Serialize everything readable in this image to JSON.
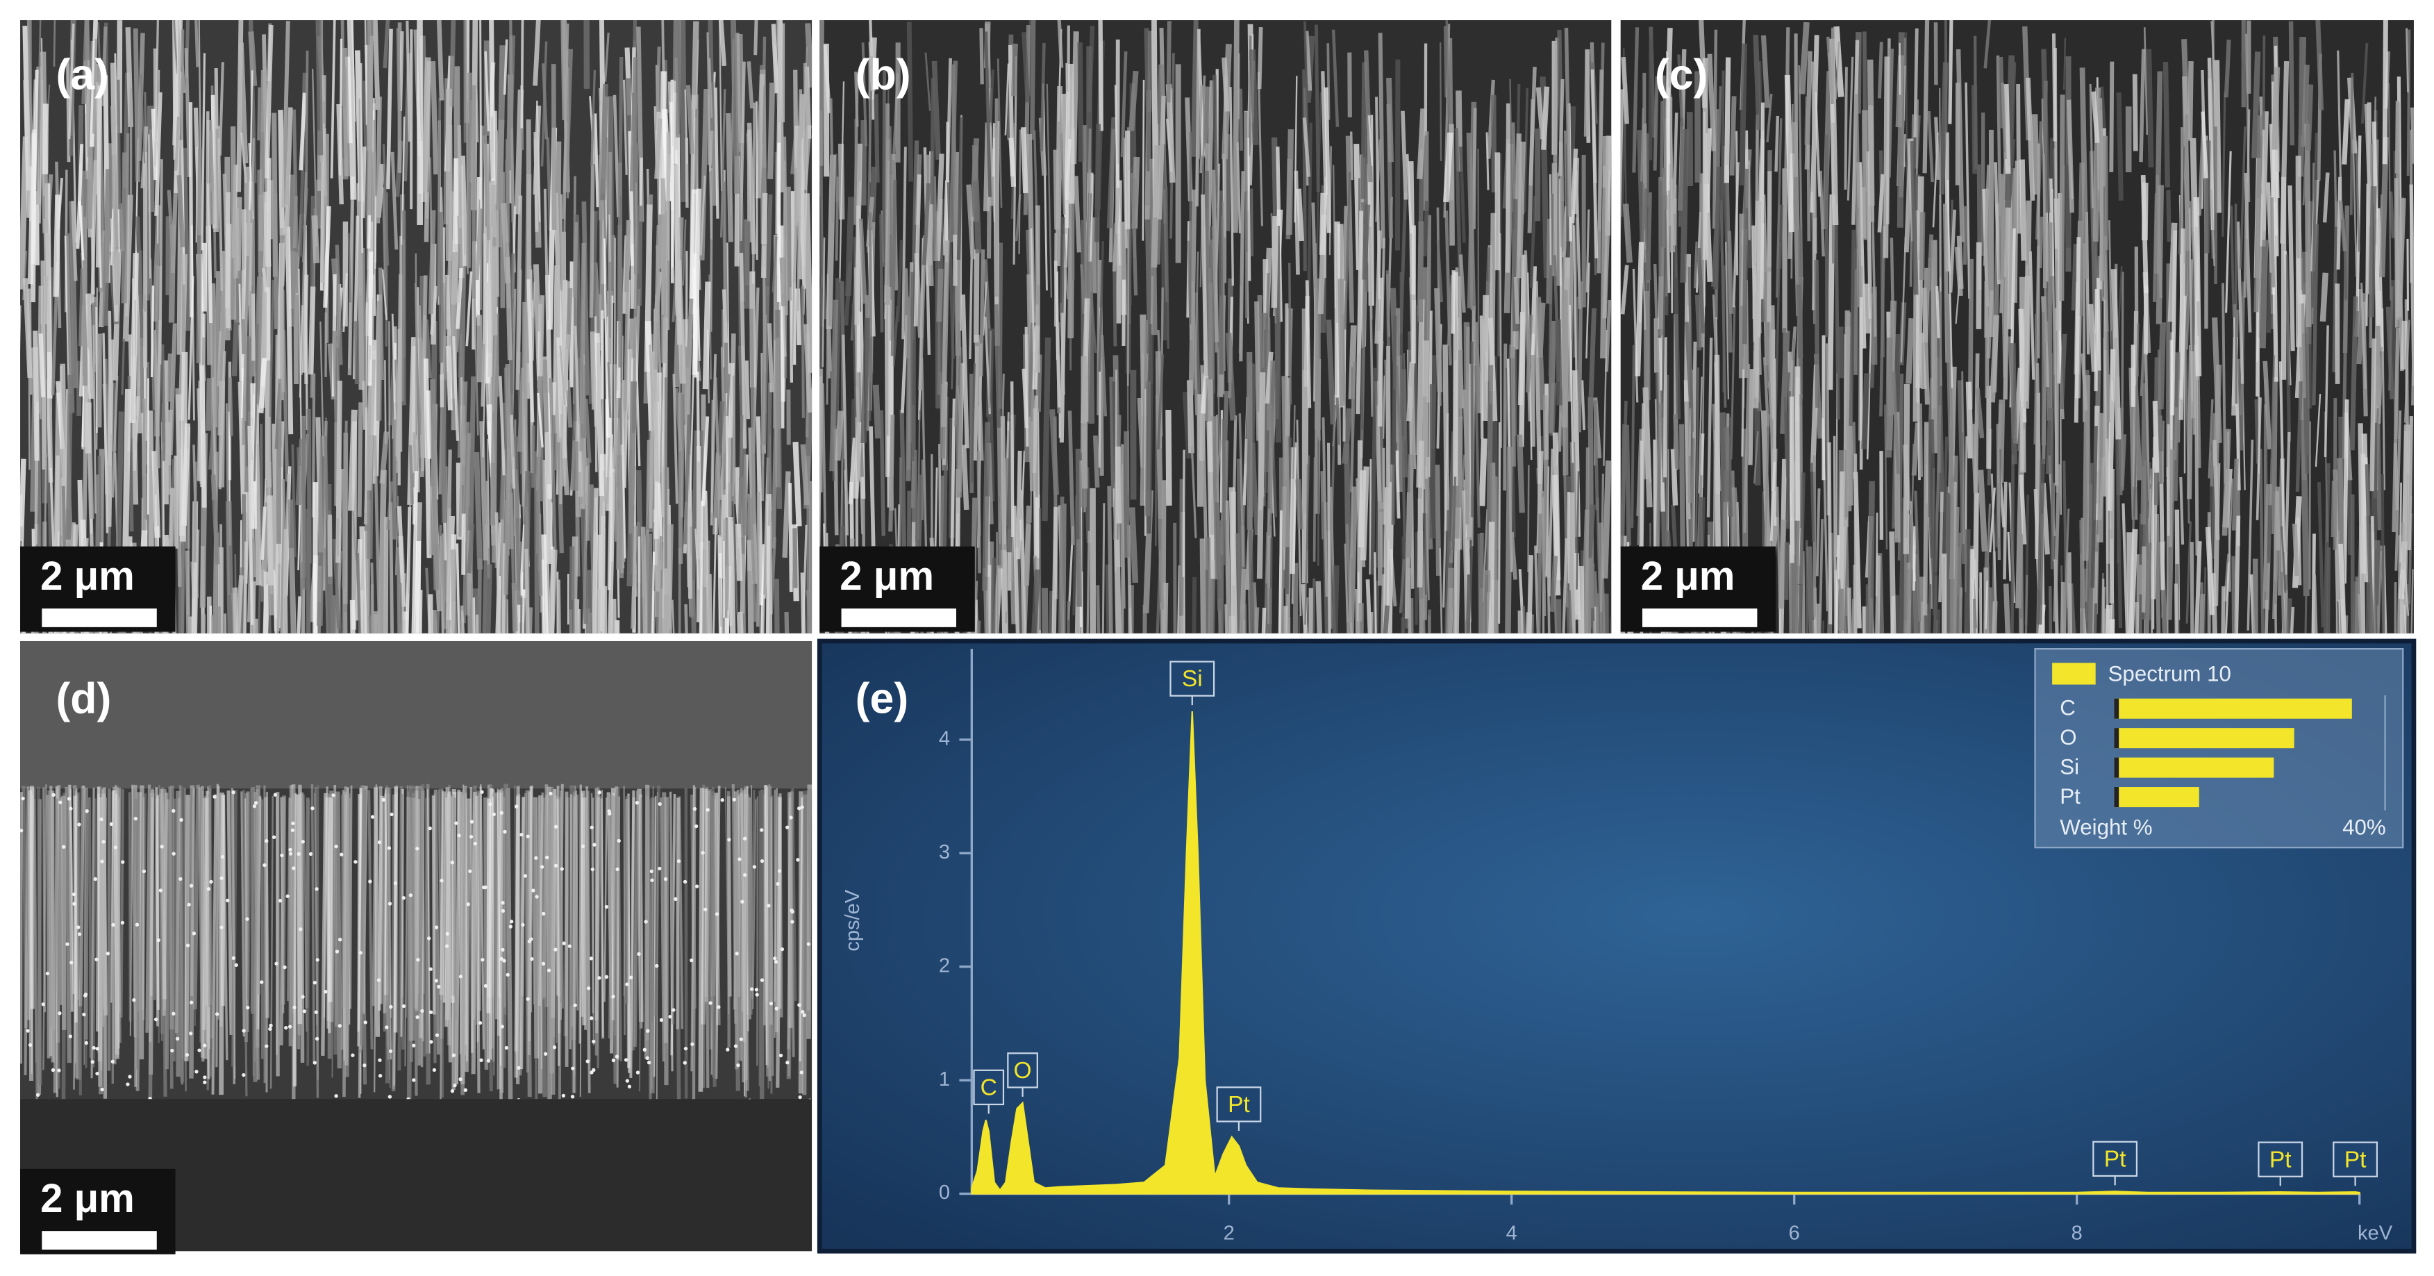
{
  "panels": [
    {
      "label": "(a)",
      "scale_bar": "2 μm"
    },
    {
      "label": "(b)",
      "scale_bar": "2 μm"
    },
    {
      "label": "(c)",
      "scale_bar": "2 μm"
    },
    {
      "label": "(d)",
      "scale_bar": "2 μm"
    },
    {
      "label": "(e)"
    }
  ],
  "chart_data": {
    "type": "area",
    "ylabel": "cps/eV",
    "xlim": [
      0.18,
      10
    ],
    "xticks": [
      2,
      4,
      6,
      8,
      {
        "value": 10,
        "label": "keV"
      }
    ],
    "ylim": [
      0,
      4.8
    ],
    "yticks": [
      0,
      1,
      2,
      3,
      4
    ],
    "series": [
      {
        "name": "Spectrum 10",
        "color": "#f2e52a",
        "x": [
          0.18,
          0.22,
          0.26,
          0.28,
          0.3,
          0.34,
          0.38,
          0.42,
          0.46,
          0.5,
          0.54,
          0.58,
          0.62,
          0.7,
          0.8,
          1.0,
          1.2,
          1.4,
          1.55,
          1.65,
          1.7,
          1.74,
          1.78,
          1.83,
          1.9,
          1.96,
          2.02,
          2.07,
          2.12,
          2.2,
          2.35,
          2.6,
          3,
          4,
          5,
          6,
          7,
          8,
          8.27,
          8.5,
          9,
          9.44,
          9.7,
          9.97,
          10
        ],
        "values": [
          0.05,
          0.2,
          0.55,
          0.65,
          0.55,
          0.1,
          0.03,
          0.1,
          0.45,
          0.75,
          0.8,
          0.45,
          0.1,
          0.05,
          0.06,
          0.07,
          0.08,
          0.1,
          0.25,
          1.2,
          3.0,
          4.25,
          3.0,
          1.0,
          0.15,
          0.35,
          0.5,
          0.42,
          0.25,
          0.1,
          0.05,
          0.04,
          0.03,
          0.02,
          0.015,
          0.01,
          0.01,
          0.01,
          0.02,
          0.01,
          0.01,
          0.015,
          0.01,
          0.015,
          0.01
        ]
      }
    ],
    "annotations": [
      {
        "label": "C",
        "x": 0.3,
        "y": 0.65
      },
      {
        "label": "O",
        "x": 0.54,
        "y": 0.8
      },
      {
        "label": "Si",
        "x": 1.74,
        "y": 4.25
      },
      {
        "label": "Pt",
        "x": 2.07,
        "y": 0.5
      },
      {
        "label": "Pt",
        "x": 8.27,
        "y": 0.02
      },
      {
        "label": "Pt",
        "x": 9.44,
        "y": 0.015
      },
      {
        "label": "Pt",
        "x": 9.97,
        "y": 0.015
      }
    ],
    "inset": {
      "type": "hbar",
      "categories": [
        "C",
        "O",
        "Si",
        "Pt"
      ],
      "values": [
        35,
        26.5,
        23.5,
        12.5
      ],
      "xlabel": "Weight %",
      "xlim": [
        0,
        40
      ],
      "xticks": [
        {
          "value": 40,
          "label": "40%"
        }
      ]
    }
  }
}
